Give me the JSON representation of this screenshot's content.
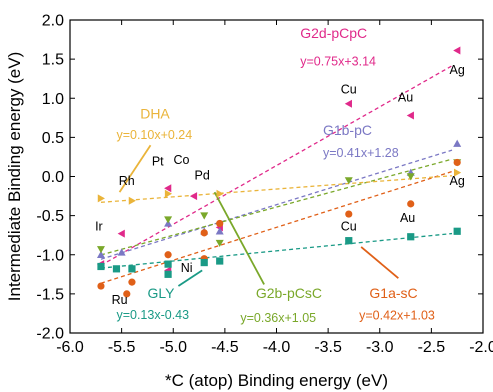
{
  "chart_data": {
    "type": "scatter",
    "title": "",
    "xlabel": "*C (atop) Binding energy (eV)",
    "ylabel": "Intermediate Binding energy (eV)",
    "xlim": [
      -6.0,
      -2.0
    ],
    "ylim": [
      -2.0,
      2.0
    ],
    "x_ticks": [
      -6.0,
      -5.5,
      -5.0,
      -4.5,
      -4.0,
      -3.5,
      -3.0,
      -2.5,
      -2.0
    ],
    "y_ticks": [
      -2.0,
      -1.5,
      -1.0,
      -0.5,
      0.0,
      0.5,
      1.0,
      1.5,
      2.0
    ],
    "x_tick_labels": [
      "-6.0",
      "-5.5",
      "-5.0",
      "-4.5",
      "-4.0",
      "-3.5",
      "-3.0",
      "-2.5",
      "-2.0"
    ],
    "y_tick_labels": [
      "-2.0",
      "-1.5",
      "-1.0",
      "-0.5",
      "0.0",
      "0.5",
      "1.0",
      "1.5",
      "2.0"
    ],
    "grid": false,
    "series": [
      {
        "name": "G2d-pCpC",
        "equation": "y=0.75x+3.14",
        "color": "#e0298a",
        "marker": "triangle-left",
        "slope": 0.75,
        "intercept": 3.14,
        "fit_x": [
          -5.7,
          -2.3
        ],
        "points": [
          {
            "x": -5.7,
            "y": -1.12
          },
          {
            "x": -5.5,
            "y": -0.73
          },
          {
            "x": -5.05,
            "y": -0.15
          },
          {
            "x": -4.8,
            "y": -0.25
          },
          {
            "x": -4.55,
            "y": -0.65
          },
          {
            "x": -3.3,
            "y": 0.93
          },
          {
            "x": -2.7,
            "y": 0.78
          },
          {
            "x": -2.25,
            "y": 1.61
          },
          {
            "x": -5.05,
            "y": -1.2
          }
        ]
      },
      {
        "name": "G1b-pC",
        "equation": "y=0.41x+1.28",
        "color": "#7b78c4",
        "marker": "triangle-up",
        "slope": 0.41,
        "intercept": 1.28,
        "fit_x": [
          -5.7,
          -2.3
        ],
        "points": [
          {
            "x": -5.7,
            "y": -1.0
          },
          {
            "x": -5.5,
            "y": -0.97
          },
          {
            "x": -5.05,
            "y": -0.6
          },
          {
            "x": -4.7,
            "y": -0.7
          },
          {
            "x": -4.55,
            "y": -0.7
          },
          {
            "x": -2.7,
            "y": 0.05
          },
          {
            "x": -2.25,
            "y": 0.42
          }
        ]
      },
      {
        "name": "G2b-pCsC",
        "equation": "y=0.36x+1.05",
        "color": "#7aa82a",
        "marker": "triangle-down",
        "slope": 0.36,
        "intercept": 1.05,
        "fit_x": [
          -5.7,
          -2.3
        ],
        "points": [
          {
            "x": -5.7,
            "y": -0.93
          },
          {
            "x": -5.05,
            "y": -0.55
          },
          {
            "x": -4.7,
            "y": -0.5
          },
          {
            "x": -4.55,
            "y": -0.85
          },
          {
            "x": -3.3,
            "y": -0.05
          },
          {
            "x": -2.7,
            "y": 0.0
          },
          {
            "x": -2.25,
            "y": 0.18
          }
        ]
      },
      {
        "name": "G1a-sC",
        "equation": "y=0.42x+1.03",
        "color": "#e06018",
        "marker": "circle",
        "slope": 0.42,
        "intercept": 1.03,
        "fit_x": [
          -5.7,
          -2.3
        ],
        "points": [
          {
            "x": -5.7,
            "y": -1.4
          },
          {
            "x": -5.45,
            "y": -1.5
          },
          {
            "x": -5.4,
            "y": -1.35
          },
          {
            "x": -5.05,
            "y": -1.0
          },
          {
            "x": -4.7,
            "y": -0.72
          },
          {
            "x": -4.7,
            "y": -1.05
          },
          {
            "x": -4.55,
            "y": -0.6
          },
          {
            "x": -3.3,
            "y": -0.48
          },
          {
            "x": -2.7,
            "y": -0.35
          },
          {
            "x": -2.25,
            "y": 0.18
          }
        ]
      },
      {
        "name": "GLY",
        "equation": "y=0.13x-0.43",
        "color": "#1a9a86",
        "marker": "square",
        "slope": 0.13,
        "intercept": -0.43,
        "fit_x": [
          -5.7,
          -2.3
        ],
        "points": [
          {
            "x": -5.7,
            "y": -1.15
          },
          {
            "x": -5.55,
            "y": -1.18
          },
          {
            "x": -5.4,
            "y": -1.18
          },
          {
            "x": -5.05,
            "y": -1.25
          },
          {
            "x": -5.05,
            "y": -1.12
          },
          {
            "x": -4.7,
            "y": -1.1
          },
          {
            "x": -4.55,
            "y": -1.08
          },
          {
            "x": -3.3,
            "y": -0.82
          },
          {
            "x": -2.7,
            "y": -0.77
          },
          {
            "x": -2.25,
            "y": -0.7
          }
        ]
      },
      {
        "name": "DHA",
        "equation": "y=0.10x+0.24",
        "color": "#eab43a",
        "marker": "triangle-right",
        "slope": 0.1,
        "intercept": 0.24,
        "fit_x": [
          -5.7,
          -2.3
        ],
        "points": [
          {
            "x": -5.7,
            "y": -0.28
          },
          {
            "x": -5.4,
            "y": -0.31
          },
          {
            "x": -5.05,
            "y": -0.22
          },
          {
            "x": -4.55,
            "y": -0.22
          },
          {
            "x": -2.25,
            "y": 0.05
          }
        ]
      }
    ],
    "metal_labels": [
      {
        "text": "Ag",
        "x": -2.25,
        "y": 1.31
      },
      {
        "text": "Au",
        "x": -2.75,
        "y": 0.96
      },
      {
        "text": "Cu",
        "x": -3.3,
        "y": 1.06
      },
      {
        "text": "Pt",
        "x": -5.15,
        "y": 0.14
      },
      {
        "text": "Co",
        "x": -4.92,
        "y": 0.16
      },
      {
        "text": "Rh",
        "x": -5.45,
        "y": -0.11
      },
      {
        "text": "Pd",
        "x": -4.72,
        "y": -0.04
      },
      {
        "text": "Ir",
        "x": -5.72,
        "y": -0.69
      },
      {
        "text": "Ag",
        "x": -2.25,
        "y": -0.11
      },
      {
        "text": "Au",
        "x": -2.73,
        "y": -0.58
      },
      {
        "text": "Cu",
        "x": -3.3,
        "y": -0.69
      },
      {
        "text": "Ni",
        "x": -4.87,
        "y": -1.22
      },
      {
        "text": "Ru",
        "x": -5.52,
        "y": -1.63
      }
    ],
    "series_labels": [
      {
        "series": 0,
        "x": -3.77,
        "y": 1.77,
        "anchor": "start"
      },
      {
        "series": 1,
        "x": -3.55,
        "y": 0.53,
        "anchor": "start"
      },
      {
        "series": 2,
        "x": -4.2,
        "y": -1.55,
        "anchor": "start"
      },
      {
        "series": 3,
        "x": -3.1,
        "y": -1.55,
        "anchor": "start"
      },
      {
        "series": 4,
        "x": -5.25,
        "y": -1.55,
        "anchor": "start"
      },
      {
        "series": 5,
        "x": -5.32,
        "y": 0.74,
        "anchor": "start"
      }
    ],
    "equation_labels": [
      {
        "series": 0,
        "x": -3.77,
        "y": 1.42
      },
      {
        "series": 1,
        "x": -3.55,
        "y": 0.25
      },
      {
        "series": 2,
        "x": -4.35,
        "y": -1.86
      },
      {
        "series": 3,
        "x": -3.2,
        "y": -1.83
      },
      {
        "series": 4,
        "x": -5.55,
        "y": -1.82
      },
      {
        "series": 5,
        "x": -5.55,
        "y": 0.48
      }
    ],
    "leaders": [
      {
        "series": 5,
        "from": [
          -5.22,
          0.4
        ],
        "to": [
          -5.52,
          -0.2
        ]
      },
      {
        "series": 4,
        "from": [
          -4.95,
          -1.4
        ],
        "to": [
          -4.72,
          -1.2
        ]
      },
      {
        "series": 2,
        "from": [
          -4.12,
          -1.38
        ],
        "to": [
          -4.6,
          -0.2
        ]
      },
      {
        "series": 3,
        "from": [
          -2.82,
          -1.3
        ],
        "to": [
          -3.18,
          -0.9
        ]
      }
    ]
  }
}
